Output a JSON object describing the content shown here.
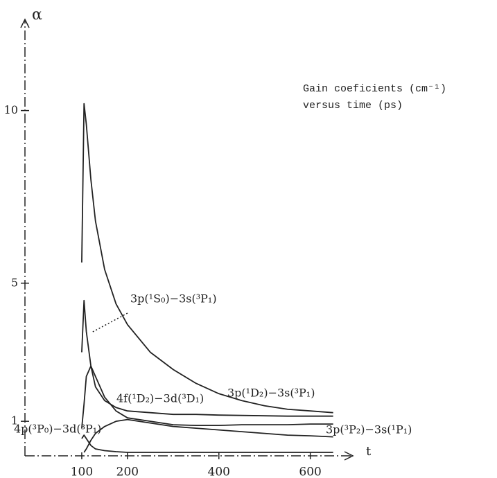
{
  "chart_data": {
    "type": "line",
    "title": [
      "Gain coeficients (cm⁻¹)",
      "versus time (ps)"
    ],
    "y_label": "α",
    "x_label": "t",
    "x": [
      100,
      105,
      110,
      120,
      130,
      150,
      175,
      200,
      250,
      300,
      350,
      400,
      450,
      500,
      550,
      600,
      650
    ],
    "series": [
      {
        "name": "3p(¹D₂)−3s(³P₁)",
        "color": "#222",
        "values": [
          5.6,
          10.2,
          9.6,
          8,
          6.8,
          5.4,
          4.4,
          3.8,
          3.0,
          2.5,
          2.1,
          1.8,
          1.6,
          1.45,
          1.35,
          1.3,
          1.25
        ]
      },
      {
        "name": "3p(¹S₀)−3s(³P₁)",
        "color": "#222",
        "values": [
          3,
          4.5,
          3.6,
          2.6,
          2.0,
          1.6,
          1.4,
          1.3,
          1.25,
          1.2,
          1.2,
          1.18,
          1.17,
          1.16,
          1.15,
          1.15,
          1.15
        ]
      },
      {
        "name": "3p(³P₂)−3s(¹P₁)",
        "color": "#222",
        "values": [
          0.8,
          1.5,
          2.3,
          2.6,
          2.3,
          1.7,
          1.3,
          1.1,
          1.0,
          0.9,
          0.88,
          0.88,
          0.9,
          0.9,
          0.9,
          0.92,
          0.92
        ]
      },
      {
        "name": "4f(¹D₂)−3d(³D₁)",
        "color": "#222",
        "values": [
          null,
          0.1,
          0.2,
          0.45,
          0.65,
          0.85,
          1.0,
          1.05,
          0.95,
          0.85,
          0.8,
          0.75,
          0.7,
          0.65,
          0.6,
          0.58,
          0.55
        ]
      },
      {
        "name": "4p(³P₀)−3d(³P₁)",
        "color": "#222",
        "values": [
          0.5,
          0.6,
          0.5,
          0.3,
          0.2,
          0.15,
          0.12,
          0.1,
          0.1,
          0.1,
          0.1,
          0.1,
          0.1,
          0.1,
          0.1,
          0.1,
          0.1
        ]
      }
    ],
    "xlim": [
      0,
      690
    ],
    "ylim": [
      0,
      12.5
    ],
    "xticks": [
      100,
      200,
      400,
      600
    ],
    "yticks": [
      1,
      5,
      10
    ]
  }
}
